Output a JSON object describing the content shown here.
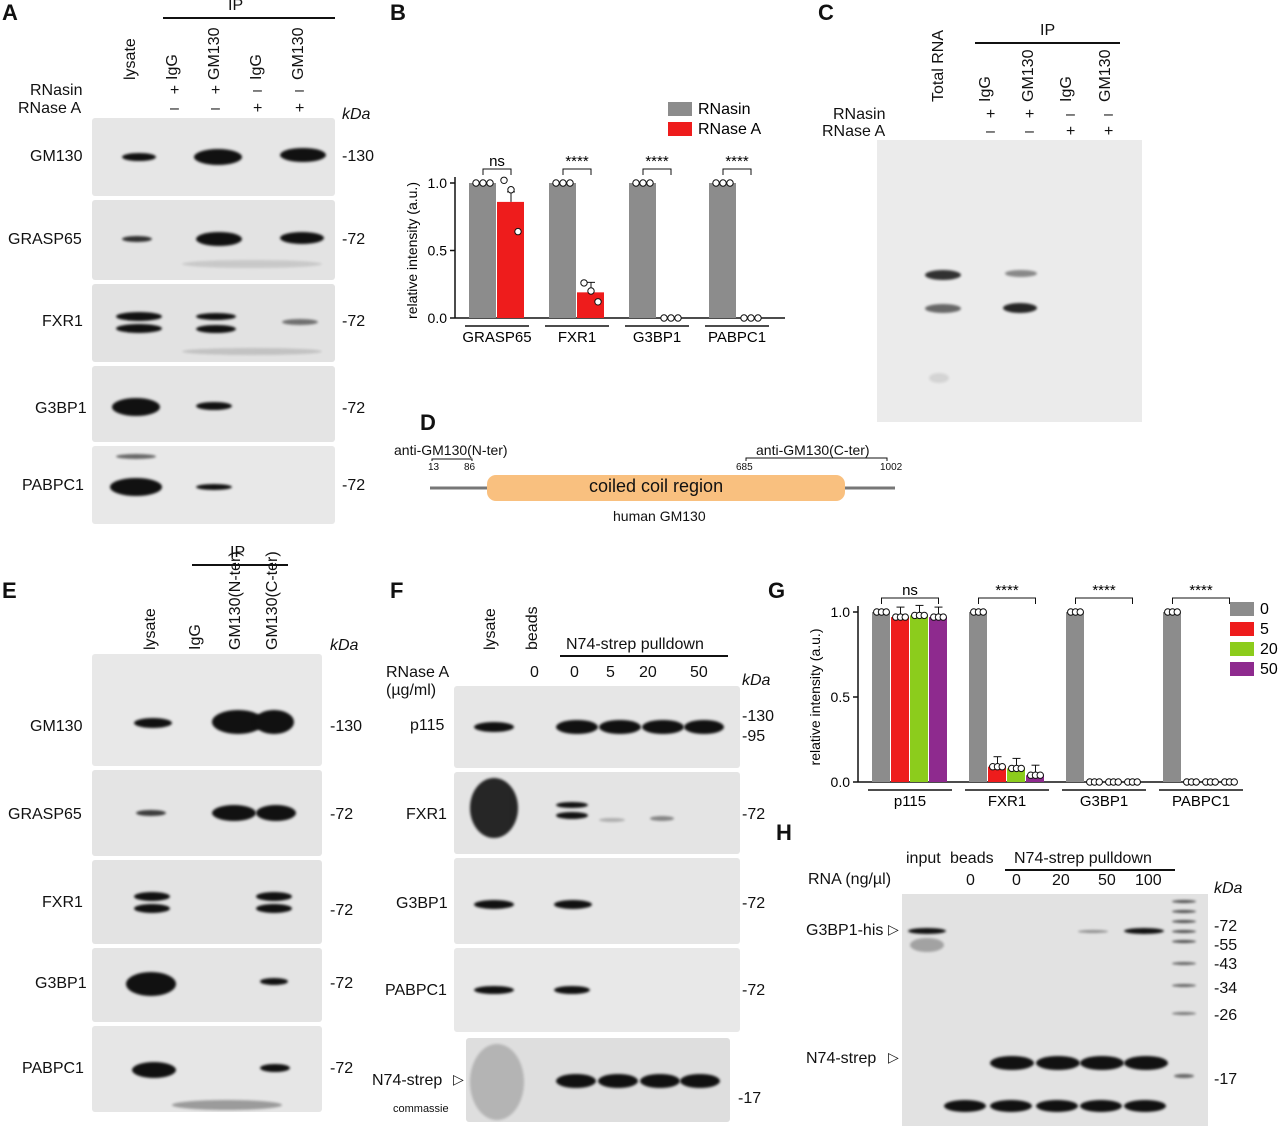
{
  "panels": {
    "A": "A",
    "B": "B",
    "C": "C",
    "D": "D",
    "E": "E",
    "F": "F",
    "G": "G",
    "H": "H"
  },
  "common": {
    "ip": "IP",
    "kda": "kDa",
    "plus": "+",
    "minus": "–",
    "dash": "–"
  },
  "panelA": {
    "lanes": [
      "lysate",
      "IgG",
      "GM130",
      "IgG",
      "GM130"
    ],
    "row_labels": [
      "RNasin",
      "RNase A"
    ],
    "rnasin": [
      "+",
      "+",
      "–",
      "–"
    ],
    "rnasea": [
      "–",
      "–",
      "+",
      "+"
    ],
    "blots": [
      {
        "name": "GM130",
        "marker": "-130"
      },
      {
        "name": "GRASP65",
        "marker": "-72"
      },
      {
        "name": "FXR1",
        "marker": "-72"
      },
      {
        "name": "G3BP1",
        "marker": "-72"
      },
      {
        "name": "PABPC1",
        "marker": "-72"
      }
    ]
  },
  "panelC": {
    "lanes": [
      "Total RNA",
      "IgG",
      "GM130",
      "IgG",
      "GM130"
    ],
    "row_labels": [
      "RNasin",
      "RNase A"
    ],
    "rnasin": [
      "+",
      "+",
      "–",
      "–"
    ],
    "rnasea": [
      "–",
      "–",
      "+",
      "+"
    ]
  },
  "panelD": {
    "nter_label": "anti-GM130(N-ter)",
    "nter_start": "13",
    "nter_end": "86",
    "cter_label": "anti-GM130(C-ter)",
    "cter_start": "685",
    "cter_end": "1002",
    "region": "coiled coil region",
    "protein": "human GM130"
  },
  "panelE": {
    "lanes": [
      "lysate",
      "IgG",
      "GM130(N-ter)",
      "GM130(C-ter)"
    ],
    "blots": [
      {
        "name": "GM130",
        "marker": "-130"
      },
      {
        "name": "GRASP65",
        "marker": "-72"
      },
      {
        "name": "FXR1",
        "marker": "-72"
      },
      {
        "name": "G3BP1",
        "marker": "-72"
      },
      {
        "name": "PABPC1",
        "marker": "-72"
      }
    ]
  },
  "panelF": {
    "lanes": [
      "lysate",
      "beads"
    ],
    "pulldown": "N74-strep pulldown",
    "rnase_label": "RNase A",
    "units": "(µg/ml)",
    "conc": [
      "0",
      "0",
      "5",
      "20",
      "50"
    ],
    "blots": [
      {
        "name": "p115",
        "marker": "-130",
        "marker2": "-95"
      },
      {
        "name": "FXR1",
        "marker": "-72"
      },
      {
        "name": "G3BP1",
        "marker": "-72"
      },
      {
        "name": "PABPC1",
        "marker": "-72"
      }
    ],
    "coomassie_label": "N74-strep",
    "coomassie": "commassie",
    "coomassie_marker": "-17"
  },
  "panelH": {
    "lanes": [
      "input",
      "beads"
    ],
    "pulldown": "N74-strep pulldown",
    "rna_label": "RNA (ng/µl)",
    "conc": [
      "0",
      "0",
      "20",
      "50",
      "100"
    ],
    "his_label": "G3BP1-his",
    "strep_label": "N74-strep",
    "markers": [
      "-72",
      "-55",
      "-43",
      "-34",
      "-26",
      "-17"
    ]
  },
  "chart_data": [
    {
      "type": "bar",
      "panel": "B",
      "ylabel": "relative intensity (a.u.)",
      "ylim": [
        0,
        1.0
      ],
      "yticks": [
        "0.0",
        "0.5",
        "1.0"
      ],
      "categories": [
        "GRASP65",
        "FXR1",
        "G3BP1",
        "PABPC1"
      ],
      "series": [
        {
          "name": "RNasin",
          "color": "#8c8c8c",
          "values": [
            1.0,
            1.0,
            1.0,
            1.0
          ],
          "points": [
            [
              1,
              1,
              1
            ],
            [
              1,
              1,
              1
            ],
            [
              1,
              1,
              1
            ],
            [
              1,
              1,
              1
            ]
          ]
        },
        {
          "name": "RNase A",
          "color": "#ee1c1c",
          "values": [
            0.86,
            0.19,
            0.0,
            0.0
          ],
          "points": [
            [
              1.02,
              0.95,
              0.64
            ],
            [
              0.26,
              0.2,
              0.12
            ],
            [
              0,
              0,
              0
            ],
            [
              0,
              0,
              0
            ]
          ]
        }
      ],
      "significance": [
        "ns",
        "****",
        "****",
        "****"
      ]
    },
    {
      "type": "bar",
      "panel": "G",
      "ylabel": "relative intensity (a.u.)",
      "ylim": [
        0,
        1.0
      ],
      "yticks": [
        "0.0",
        "0.5",
        "1.0"
      ],
      "categories": [
        "p115",
        "FXR1",
        "G3BP1",
        "PABPC1"
      ],
      "series": [
        {
          "name": "0",
          "color": "#8c8c8c",
          "values": [
            1.0,
            1.0,
            1.0,
            1.0
          ]
        },
        {
          "name": "5",
          "color": "#ee1c1c",
          "values": [
            0.97,
            0.09,
            0.0,
            0.0
          ]
        },
        {
          "name": "20",
          "color": "#8ccc1c",
          "values": [
            0.98,
            0.08,
            0.0,
            0.0
          ]
        },
        {
          "name": "50",
          "color": "#8e2a8e",
          "values": [
            0.97,
            0.04,
            0.0,
            0.0
          ]
        }
      ],
      "significance": [
        "ns",
        "****",
        "****",
        "****"
      ]
    }
  ]
}
